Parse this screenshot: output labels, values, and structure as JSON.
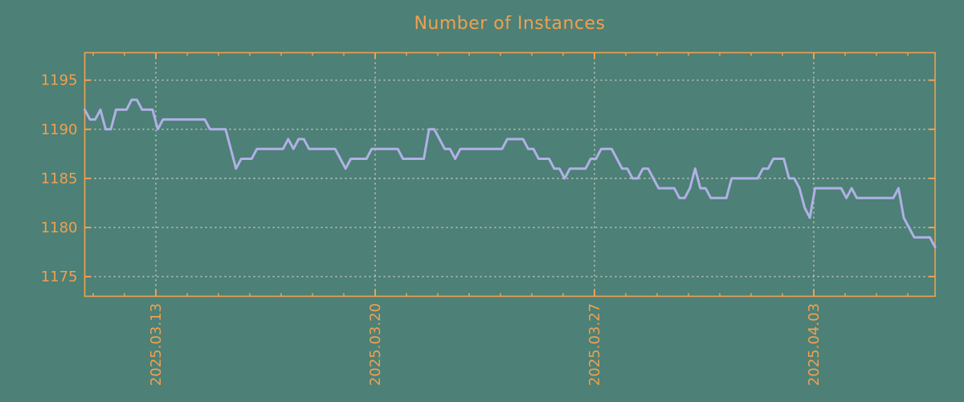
{
  "chart_data": {
    "type": "line",
    "title": "Number of Instances",
    "xlabel": "",
    "ylabel": "",
    "grid": true,
    "legend": false,
    "x_axis": {
      "tick_labels": [
        "2025.03.13",
        "2025.03.20",
        "2025.03.27",
        "2025.04.03"
      ],
      "minor_tick_interval_days": 1,
      "approx_range_days": 27.2
    },
    "y_axis": {
      "tick_values": [
        1175,
        1180,
        1185,
        1190,
        1195
      ],
      "ylim": [
        1173.0,
        1197.8
      ]
    },
    "series": [
      {
        "name": "instances",
        "sampling": "about 6 samples per day",
        "values": [
          1192,
          1191,
          1191,
          1192,
          1190,
          1190,
          1192,
          1192,
          1192,
          1193,
          1193,
          1192,
          1192,
          1192,
          1190,
          1191,
          1191,
          1191,
          1191,
          1191,
          1191,
          1191,
          1191,
          1191,
          1190,
          1190,
          1190,
          1190,
          1188,
          1186,
          1187,
          1187,
          1187,
          1188,
          1188,
          1188,
          1188,
          1188,
          1188,
          1189,
          1188,
          1189,
          1189,
          1188,
          1188,
          1188,
          1188,
          1188,
          1188,
          1187,
          1186,
          1187,
          1187,
          1187,
          1187,
          1188,
          1188,
          1188,
          1188,
          1188,
          1188,
          1187,
          1187,
          1187,
          1187,
          1187,
          1190,
          1190,
          1189,
          1188,
          1188,
          1187,
          1188,
          1188,
          1188,
          1188,
          1188,
          1188,
          1188,
          1188,
          1188,
          1189,
          1189,
          1189,
          1189,
          1188,
          1188,
          1187,
          1187,
          1187,
          1186,
          1186,
          1185,
          1186,
          1186,
          1186,
          1186,
          1187,
          1187,
          1188,
          1188,
          1188,
          1187,
          1186,
          1186,
          1185,
          1185,
          1186,
          1186,
          1185,
          1184,
          1184,
          1184,
          1184,
          1183,
          1183,
          1184,
          1186,
          1184,
          1184,
          1183,
          1183,
          1183,
          1183,
          1185,
          1185,
          1185,
          1185,
          1185,
          1185,
          1186,
          1186,
          1187,
          1187,
          1187,
          1185,
          1185,
          1184,
          1182,
          1181,
          1184,
          1184,
          1184,
          1184,
          1184,
          1184,
          1183,
          1184,
          1183,
          1183,
          1183,
          1183,
          1183,
          1183,
          1183,
          1183,
          1184,
          1181,
          1180,
          1179,
          1179,
          1179,
          1179,
          1178
        ]
      }
    ],
    "colors": {
      "background": "#4d8076",
      "axis": "#f0a050",
      "line": "#b0b0e6",
      "grid": "#cccac4"
    }
  }
}
